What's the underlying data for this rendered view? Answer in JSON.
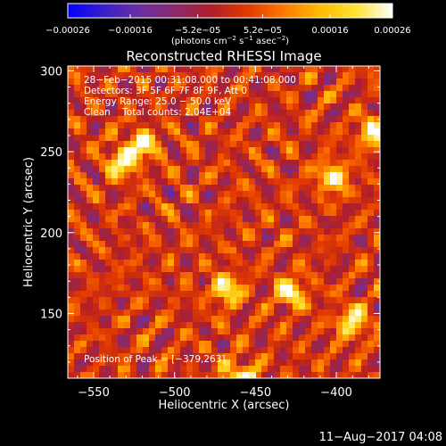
{
  "colorbar": {
    "tick_labels": [
      "−0.00026",
      "−0.00016",
      "−5.2e−05",
      "5.2e−05",
      "0.00016",
      "0.00026"
    ],
    "tick_values": [
      -0.00026,
      -0.00016,
      -5.2e-05,
      5.2e-05,
      0.00016,
      0.00026
    ],
    "range": [
      -0.00026,
      0.00026
    ],
    "unit_parts": [
      "(photons cm",
      "−2",
      " s",
      "−1",
      " asec",
      "−2",
      ")"
    ],
    "colormap": [
      "#0000ff",
      "#3b1fc8",
      "#6a2fa0",
      "#8a2a6a",
      "#b01e2a",
      "#e23a00",
      "#ff7a00",
      "#ffbb00",
      "#ffe23a",
      "#ffffff"
    ]
  },
  "chart_data": {
    "type": "heatmap",
    "title": "Reconstructed RHESSI Image",
    "xlabel": "Heliocentric X (arcsec)",
    "ylabel": "Heliocentric Y (arcsec)",
    "xlim": [
      -566,
      -373
    ],
    "ylim": [
      110,
      303
    ],
    "x_ticks": [
      -550,
      -500,
      -450,
      -400
    ],
    "y_ticks": [
      150,
      200,
      250,
      300
    ],
    "x_tick_labels": [
      "−550",
      "−500",
      "−450",
      "−400"
    ],
    "y_tick_labels": [
      "150",
      "200",
      "250",
      "300"
    ],
    "annotations": [
      "28−Feb−2015 00:31:08.000 to 00:41:08.000",
      "Detectors: 3F 5F 6F 7F 8F 9F, Att 0",
      "Energy Range: 25.0 − 50.0 keV",
      "Clean    Total counts: 2.04E+04"
    ],
    "peak_label": "Position of Peak = [−379,263]",
    "peak_position": [
      -379,
      263
    ],
    "brightest_regions": [
      {
        "x": -522,
        "y": 256
      },
      {
        "x": -535,
        "y": 245
      },
      {
        "x": -470,
        "y": 167
      },
      {
        "x": -462,
        "y": 113
      },
      {
        "x": -379,
        "y": 263
      },
      {
        "x": -404,
        "y": 236
      },
      {
        "x": -430,
        "y": 165
      },
      {
        "x": -392,
        "y": 147
      }
    ]
  },
  "footer": {
    "timestamp": "11−Aug−2017 04:08"
  }
}
